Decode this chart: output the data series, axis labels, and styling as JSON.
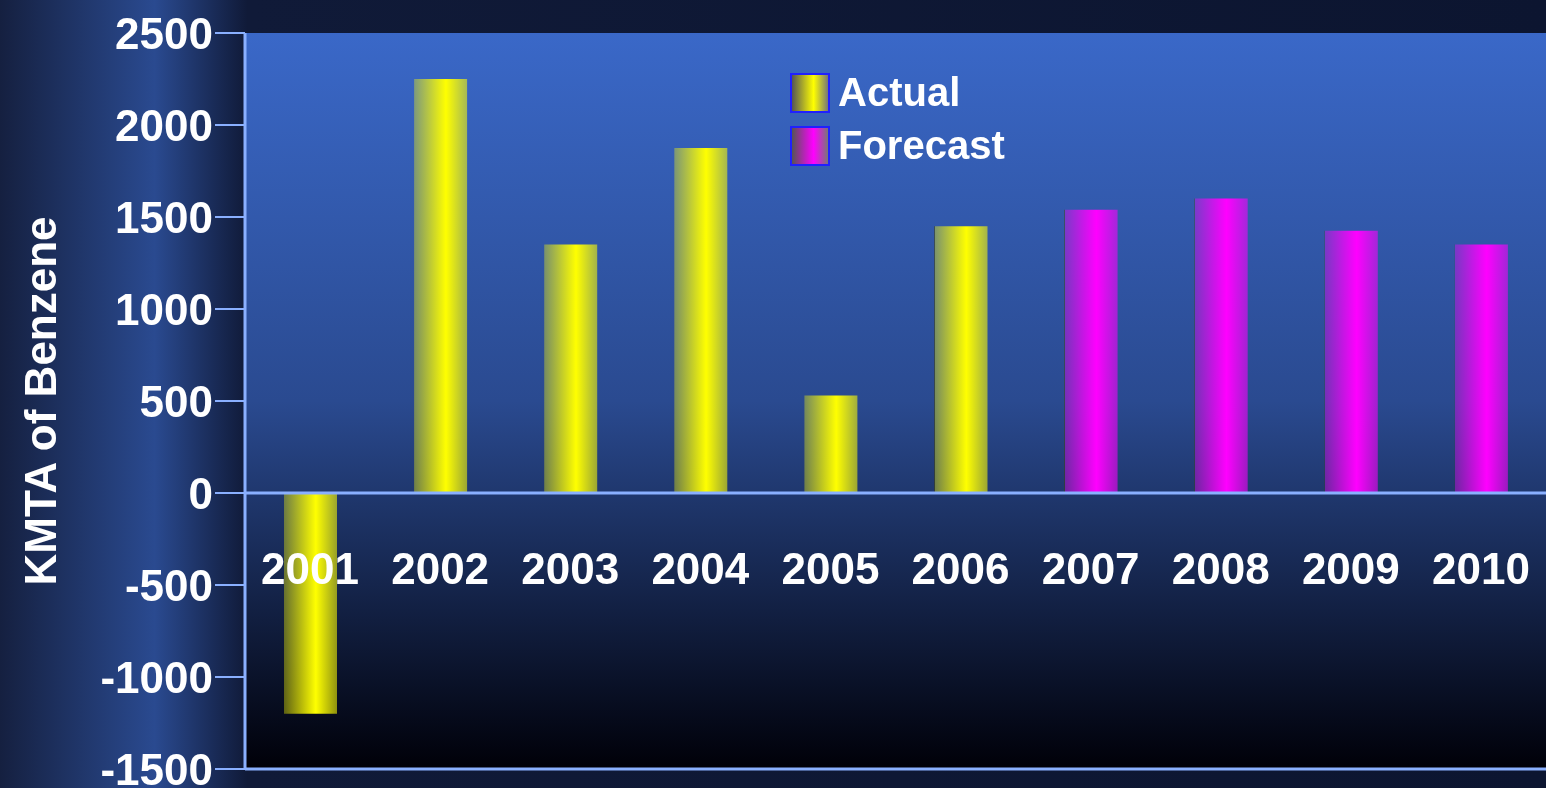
{
  "chart_data": {
    "type": "bar",
    "ylabel": "KMTA of Benzene",
    "categories": [
      "2001",
      "2002",
      "2003",
      "2004",
      "2005",
      "2006",
      "2007",
      "2008",
      "2009",
      "2010"
    ],
    "series": [
      {
        "name": "Actual",
        "color": "#ffff00",
        "values": [
          -1200,
          2250,
          1350,
          1875,
          530,
          1450,
          null,
          null,
          null,
          null
        ]
      },
      {
        "name": "Forecast",
        "color": "#ff00ff",
        "values": [
          null,
          null,
          null,
          null,
          null,
          null,
          1540,
          1600,
          1425,
          1350
        ]
      }
    ],
    "stacked": true,
    "ylim": [
      -1500,
      2500
    ],
    "yticks": [
      -1500,
      -1000,
      -500,
      0,
      500,
      1000,
      1500,
      2000,
      2500
    ],
    "grid": false,
    "legend": "top"
  }
}
